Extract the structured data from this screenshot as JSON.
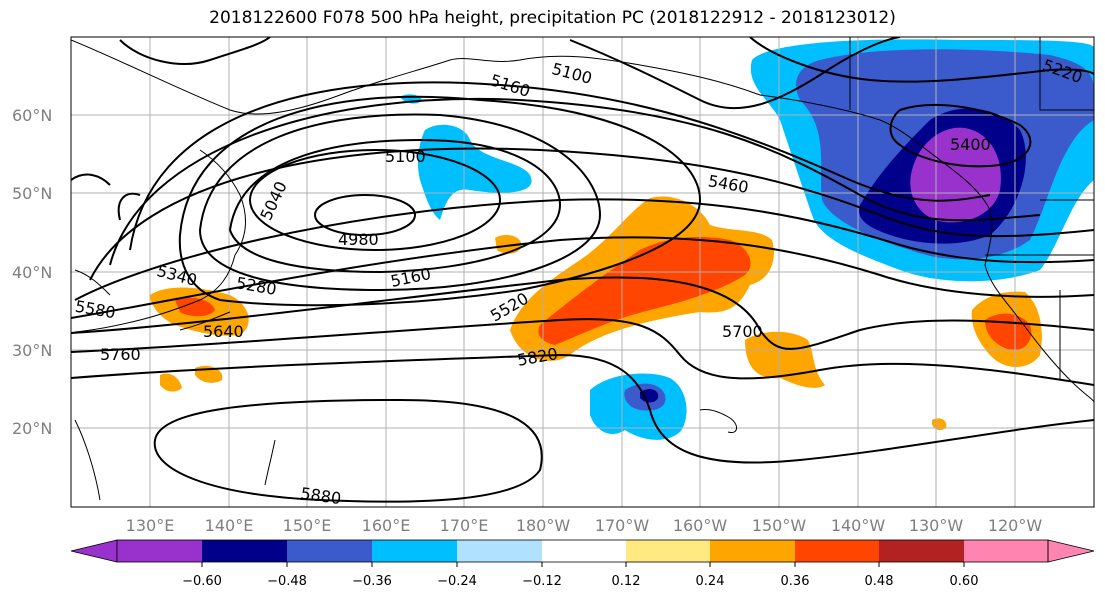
{
  "title": "2018122600 F078 500 hPa height, precipitation PC (2018122912 - 2018123012)",
  "map": {
    "lat_labels": [
      "60°N",
      "50°N",
      "40°N",
      "30°N",
      "20°N"
    ],
    "lon_labels": [
      "130°E",
      "140°E",
      "150°E",
      "160°E",
      "170°E",
      "180°W",
      "170°W",
      "160°W",
      "150°W",
      "140°W",
      "130°W",
      "120°W"
    ],
    "contour_labels": [
      "5100",
      "5160",
      "5220",
      "5100",
      "5400",
      "5040",
      "4980",
      "5460",
      "5160",
      "5340",
      "5280",
      "5580",
      "5520",
      "5640",
      "5760",
      "5700",
      "5820",
      "5880"
    ],
    "colors": {
      "contour": "#000000",
      "grid": "#b0b0b0",
      "coast": "#000000"
    }
  },
  "colorbar": {
    "ticks": [
      "−0.60",
      "−0.48",
      "−0.36",
      "−0.24",
      "−0.12",
      "0.12",
      "0.24",
      "0.36",
      "0.48",
      "0.60"
    ],
    "colors": [
      "#9932cc",
      "#00008b",
      "#3b5bcc",
      "#00bfff",
      "#b0e2ff",
      "#ffffff",
      "#ffe980",
      "#ffa500",
      "#ff4500",
      "#b22222",
      "#ff85b0"
    ]
  }
}
